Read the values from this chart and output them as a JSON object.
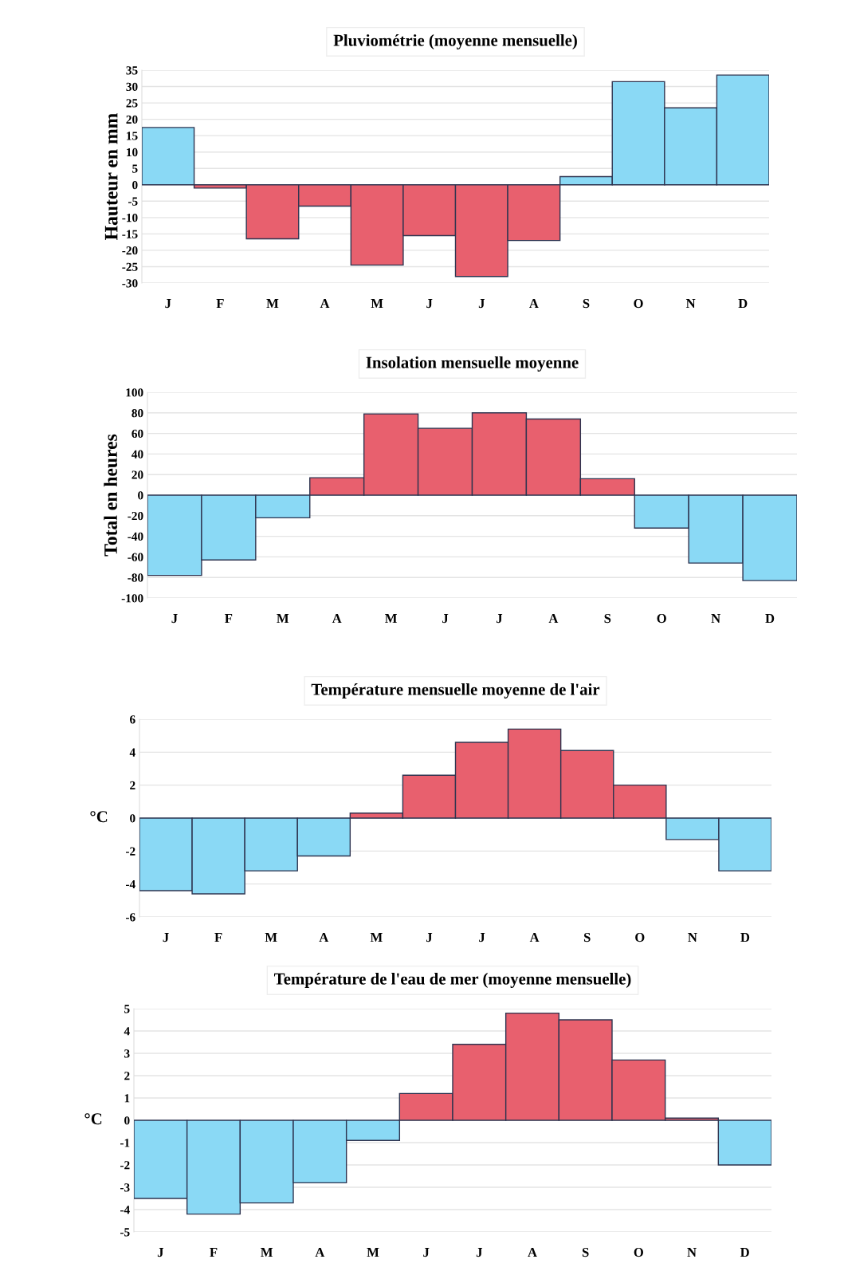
{
  "chart_data": [
    {
      "type": "bar",
      "title": "Pluviométrie (moyenne mensuelle)",
      "ylabel": "Hauteur en mm",
      "categories": [
        "J",
        "F",
        "M",
        "A",
        "M",
        "J",
        "J",
        "A",
        "S",
        "O",
        "N",
        "D"
      ],
      "values": [
        17.5,
        -1,
        -16.5,
        -6.5,
        -24.5,
        -15.5,
        -28,
        -17,
        2.5,
        31.5,
        23.5,
        33.5
      ],
      "colors": [
        "#8ad9f5",
        "#e8606e",
        "#e8606e",
        "#e8606e",
        "#e8606e",
        "#e8606e",
        "#e8606e",
        "#e8606e",
        "#8ad9f5",
        "#8ad9f5",
        "#8ad9f5",
        "#8ad9f5"
      ],
      "ylim": [
        -30,
        35
      ],
      "yticks": [
        -30,
        -25,
        -20,
        -15,
        -10,
        -5,
        0,
        5,
        10,
        15,
        20,
        25,
        30,
        35
      ],
      "grid": "y"
    },
    {
      "type": "bar",
      "title": "Insolation mensuelle moyenne",
      "ylabel": "Total en heures",
      "categories": [
        "J",
        "F",
        "M",
        "A",
        "M",
        "J",
        "J",
        "A",
        "S",
        "O",
        "N",
        "D"
      ],
      "values": [
        -78,
        -63,
        -22,
        17,
        79,
        65,
        80,
        74,
        16,
        -32,
        -66,
        -83
      ],
      "colors": [
        "#8ad9f5",
        "#8ad9f5",
        "#8ad9f5",
        "#e8606e",
        "#e8606e",
        "#e8606e",
        "#e8606e",
        "#e8606e",
        "#e8606e",
        "#8ad9f5",
        "#8ad9f5",
        "#8ad9f5"
      ],
      "ylim": [
        -100,
        100
      ],
      "yticks": [
        -100,
        -80,
        -60,
        -40,
        -20,
        0,
        20,
        40,
        60,
        80,
        100
      ],
      "grid": "y"
    },
    {
      "type": "bar",
      "title": "Température mensuelle moyenne de l'air",
      "ylabel": "°C",
      "categories": [
        "J",
        "F",
        "M",
        "A",
        "M",
        "J",
        "J",
        "A",
        "S",
        "O",
        "N",
        "D"
      ],
      "values": [
        -4.4,
        -4.6,
        -3.2,
        -2.3,
        0.3,
        2.6,
        4.6,
        5.4,
        4.1,
        2.0,
        -1.3,
        -3.2
      ],
      "colors": [
        "#8ad9f5",
        "#8ad9f5",
        "#8ad9f5",
        "#8ad9f5",
        "#e8606e",
        "#e8606e",
        "#e8606e",
        "#e8606e",
        "#e8606e",
        "#e8606e",
        "#8ad9f5",
        "#8ad9f5"
      ],
      "ylim": [
        -6,
        6
      ],
      "yticks": [
        -6,
        -4,
        -2,
        0,
        2,
        4,
        6
      ],
      "grid": "y"
    },
    {
      "type": "bar",
      "title": "Température de l'eau de mer (moyenne mensuelle)",
      "ylabel": "°C",
      "categories": [
        "J",
        "F",
        "M",
        "A",
        "M",
        "J",
        "J",
        "A",
        "S",
        "O",
        "N",
        "D"
      ],
      "values": [
        -3.5,
        -4.2,
        -3.7,
        -2.8,
        -0.9,
        1.2,
        3.4,
        4.8,
        4.5,
        2.7,
        0.1,
        -2.0
      ],
      "colors": [
        "#8ad9f5",
        "#8ad9f5",
        "#8ad9f5",
        "#8ad9f5",
        "#8ad9f5",
        "#e8606e",
        "#e8606e",
        "#e8606e",
        "#e8606e",
        "#e8606e",
        "#e8606e",
        "#8ad9f5"
      ],
      "ylim": [
        -5,
        5
      ],
      "yticks": [
        -5,
        -4,
        -3,
        -2,
        -1,
        0,
        1,
        2,
        3,
        4,
        5
      ],
      "grid": "y"
    }
  ]
}
